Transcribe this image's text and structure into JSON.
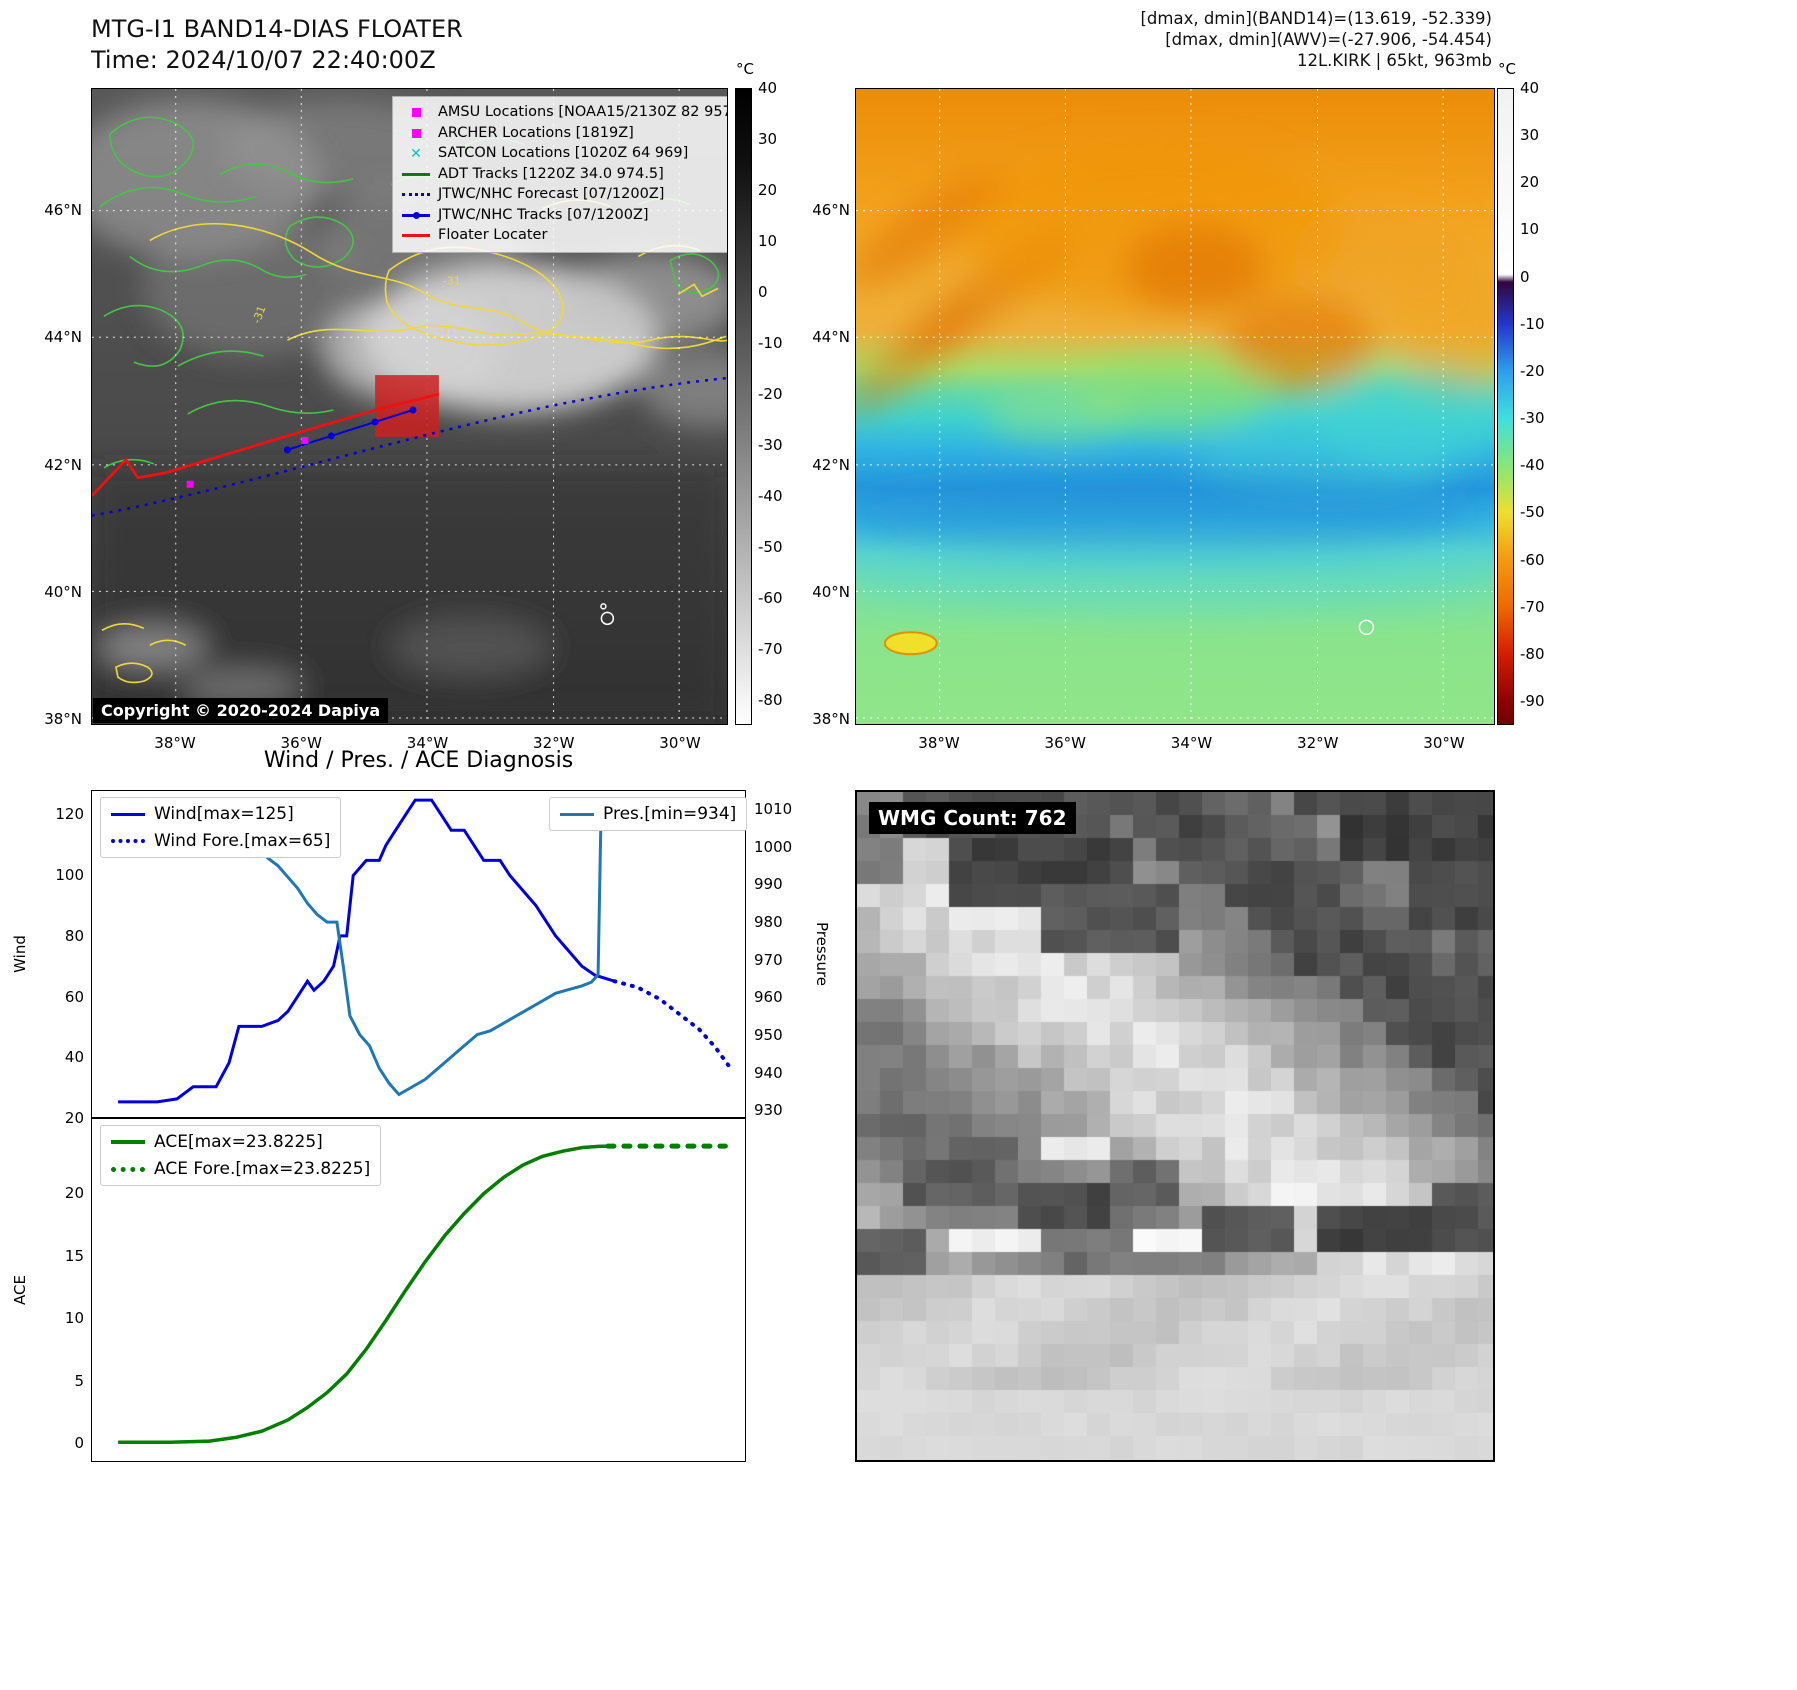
{
  "colors": {
    "wind_line": "#0000dd",
    "pressure_line": "#1f77b4",
    "ace_line": "#007f00",
    "floater_line": "#ee1111",
    "forecast_line": "#0000dd",
    "amsu_marker": "#ff00ff",
    "satcon_marker": "#00c5cc",
    "adt_line": "#007f00",
    "contour_green": "#44c544",
    "contour_yellow": "#f0d83a"
  },
  "band14_panel": {
    "title": "MTG-I1 BAND14-DIAS FLOATER",
    "subtitle": "Time: 2024/10/07 22:40:00Z",
    "copyright": "Copyright © 2020-2024 Dapiya",
    "lat_ticks": [
      "46°N",
      "44°N",
      "42°N",
      "40°N",
      "38°N"
    ],
    "lon_ticks": [
      "38°W",
      "36°W",
      "34°W",
      "32°W",
      "30°W"
    ],
    "colorbar": {
      "unit": "°C",
      "ticks": [
        "40",
        "30",
        "20",
        "10",
        "0",
        "-10",
        "-20",
        "-30",
        "-40",
        "-50",
        "-60",
        "-70",
        "-80"
      ]
    },
    "legend": [
      {
        "label": "AMSU Locations [NOAA15/2130Z 82 957]",
        "icon": "magenta-square"
      },
      {
        "label": "ARCHER Locations [1819Z]",
        "icon": "magenta-square"
      },
      {
        "label": "SATCON Locations [1020Z 64 969]",
        "icon": "cyan-x"
      },
      {
        "label": "ADT Tracks [1220Z 34.0 974.5]",
        "icon": "green-line"
      },
      {
        "label": "JTWC/NHC Forecast [07/1200Z]",
        "icon": "blue-dotted-line"
      },
      {
        "label": "JTWC/NHC Tracks [07/1200Z]",
        "icon": "blue-line-with-dot"
      },
      {
        "label": "Floater Locater",
        "icon": "red-line"
      }
    ],
    "contour_labels": [
      "-31",
      "-31",
      "-31"
    ]
  },
  "awv_panel": {
    "header_lines": [
      "[dmax, dmin](BAND14)=(13.619, -52.339)",
      "[dmax, dmin](AWV)=(-27.906, -54.454)",
      "12L.KIRK | 65kt, 963mb"
    ],
    "lat_ticks": [
      "46°N",
      "44°N",
      "42°N",
      "40°N",
      "38°N"
    ],
    "lon_ticks": [
      "38°W",
      "36°W",
      "34°W",
      "32°W",
      "30°W"
    ],
    "colorbar": {
      "unit": "°C",
      "ticks": [
        "40",
        "30",
        "20",
        "10",
        "0",
        "-10",
        "-20",
        "-30",
        "-40",
        "-50",
        "-60",
        "-70",
        "-80",
        "-90"
      ]
    }
  },
  "diagnosis": {
    "title": "Wind / Pres. / ACE Diagnosis",
    "ylabel_wind": "Wind",
    "ylabel_pressure": "Pressure",
    "ylabel_ace": "ACE"
  },
  "wmg_panel": {
    "label": "WMG Count: 762"
  },
  "chart_data": [
    {
      "type": "line",
      "title": "Wind / Pres. / ACE Diagnosis",
      "xlabel": "",
      "ylabel_left": "Wind",
      "ylabel_right": "Pressure",
      "x_range": [
        0,
        1
      ],
      "y_left_range": [
        20,
        128
      ],
      "y_left_ticks": [
        120,
        100,
        80,
        60,
        40,
        20
      ],
      "y_right_range": [
        928,
        1015
      ],
      "y_right_ticks": [
        1010,
        1000,
        990,
        980,
        970,
        960,
        950,
        940,
        930
      ],
      "grid": false,
      "legend_position": "top",
      "series": [
        {
          "name": "Wind[max=125]",
          "axis": "left",
          "style": "solid",
          "width": 3,
          "color": "#0000dd",
          "x": [
            0.04,
            0.1,
            0.13,
            0.155,
            0.19,
            0.21,
            0.225,
            0.26,
            0.285,
            0.3,
            0.315,
            0.33,
            0.34,
            0.355,
            0.37,
            0.38,
            0.39,
            0.4,
            0.42,
            0.44,
            0.45,
            0.465,
            0.48,
            0.495,
            0.52,
            0.535,
            0.55,
            0.57,
            0.585,
            0.6,
            0.625,
            0.64,
            0.66,
            0.68,
            0.695,
            0.71,
            0.73,
            0.75,
            0.77,
            0.8
          ],
          "y": [
            25,
            25,
            26,
            30,
            30,
            38,
            50,
            50,
            52,
            55,
            60,
            65,
            62,
            65,
            70,
            80,
            80,
            100,
            105,
            105,
            110,
            115,
            120,
            125,
            125,
            120,
            115,
            115,
            110,
            105,
            105,
            100,
            95,
            90,
            85,
            80,
            75,
            70,
            67,
            65
          ]
        },
        {
          "name": "Wind Fore.[max=65]",
          "axis": "left",
          "style": "dotted",
          "dash": "1 8",
          "width": 4,
          "color": "#0000dd",
          "x": [
            0.8,
            0.835,
            0.87,
            0.9,
            0.93,
            0.955,
            0.975
          ],
          "y": [
            65,
            63,
            59,
            54,
            49,
            43,
            37
          ]
        },
        {
          "name": "Pres.[min=934]",
          "axis": "right",
          "style": "solid",
          "width": 3,
          "color": "#1f77b4",
          "x": [
            0.12,
            0.16,
            0.19,
            0.21,
            0.23,
            0.25,
            0.27,
            0.285,
            0.3,
            0.315,
            0.33,
            0.345,
            0.36,
            0.375,
            0.385,
            0.395,
            0.41,
            0.425,
            0.44,
            0.455,
            0.47,
            0.49,
            0.51,
            0.53,
            0.55,
            0.57,
            0.59,
            0.61,
            0.63,
            0.65,
            0.67,
            0.69,
            0.71,
            0.73,
            0.75,
            0.765,
            0.775,
            0.78
          ],
          "y": [
            1013,
            1012,
            1010,
            1008,
            1005,
            1000,
            997,
            995,
            992,
            989,
            985,
            982,
            980,
            980,
            968,
            955,
            950,
            947,
            941,
            937,
            934,
            936,
            938,
            941,
            944,
            947,
            950,
            951,
            953,
            955,
            957,
            959,
            961,
            962,
            963,
            964,
            966,
            1013
          ]
        }
      ]
    },
    {
      "type": "line",
      "title": "",
      "xlabel": "",
      "ylabel_left": "ACE",
      "x_range": [
        0,
        1
      ],
      "y_left_range": [
        -1.5,
        26
      ],
      "y_left_ticks": [
        20,
        15,
        10,
        5,
        0
      ],
      "grid": false,
      "legend_position": "top",
      "series": [
        {
          "name": "ACE[max=23.8225]",
          "axis": "left",
          "style": "solid",
          "width": 3.5,
          "color": "#007f00",
          "x": [
            0.04,
            0.12,
            0.18,
            0.22,
            0.26,
            0.3,
            0.33,
            0.36,
            0.39,
            0.42,
            0.45,
            0.48,
            0.51,
            0.54,
            0.57,
            0.6,
            0.63,
            0.66,
            0.69,
            0.72,
            0.75,
            0.775,
            0.79
          ],
          "y": [
            0,
            0,
            0.1,
            0.4,
            0.9,
            1.8,
            2.8,
            4.0,
            5.5,
            7.5,
            9.8,
            12.2,
            14.5,
            16.6,
            18.4,
            20.0,
            21.3,
            22.3,
            23.0,
            23.4,
            23.7,
            23.8,
            23.82
          ]
        },
        {
          "name": "ACE Fore.[max=23.8225]",
          "axis": "left",
          "style": "dotted",
          "dash": "6 10",
          "width": 5,
          "color": "#007f00",
          "x": [
            0.79,
            0.85,
            0.91,
            0.97
          ],
          "y": [
            23.82,
            23.82,
            23.82,
            23.82
          ]
        }
      ]
    }
  ]
}
